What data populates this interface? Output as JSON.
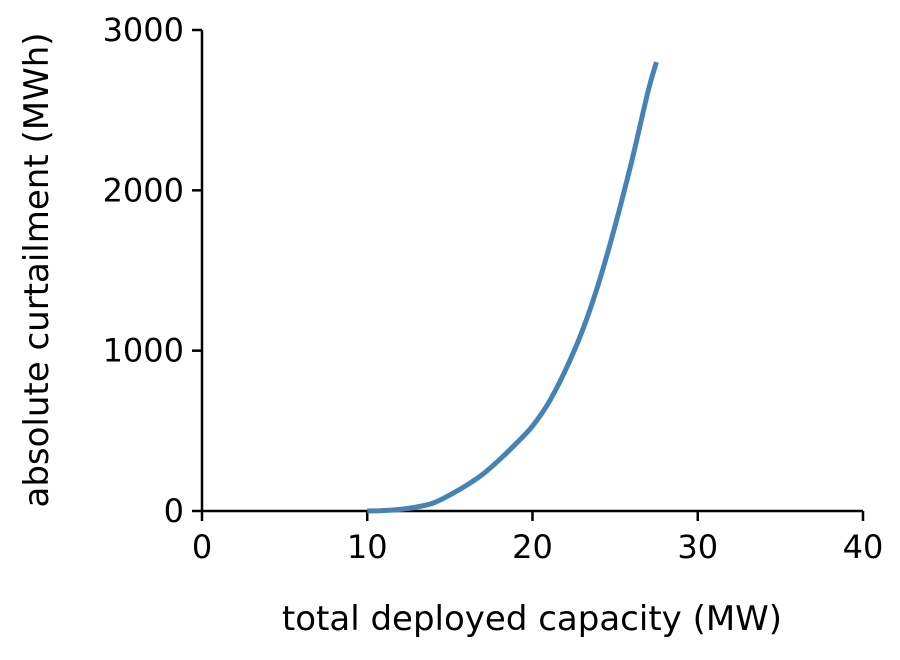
{
  "chart_data": {
    "type": "line",
    "title": "",
    "xlabel": "total deployed capacity (MW)",
    "ylabel": "absolute curtailment (MWh)",
    "xlim": [
      0,
      40
    ],
    "ylim": [
      0,
      3000
    ],
    "xticks": [
      0,
      10,
      20,
      30,
      40
    ],
    "yticks": [
      0,
      1000,
      2000,
      3000
    ],
    "xtick_labels": [
      "0",
      "10",
      "20",
      "30",
      "40"
    ],
    "ytick_labels": [
      "0",
      "1000",
      "2000",
      "3000"
    ],
    "grid": false,
    "legend": "none",
    "series": [
      {
        "color": "#4682b4",
        "x": [
          10,
          11,
          12,
          13,
          14,
          15,
          16,
          17,
          18,
          19,
          20,
          21,
          22,
          23,
          24,
          25,
          26,
          27,
          27.5
        ],
        "y": [
          0,
          3,
          10,
          25,
          50,
          100,
          160,
          230,
          320,
          420,
          530,
          680,
          880,
          1120,
          1420,
          1780,
          2180,
          2620,
          2800
        ]
      }
    ]
  }
}
